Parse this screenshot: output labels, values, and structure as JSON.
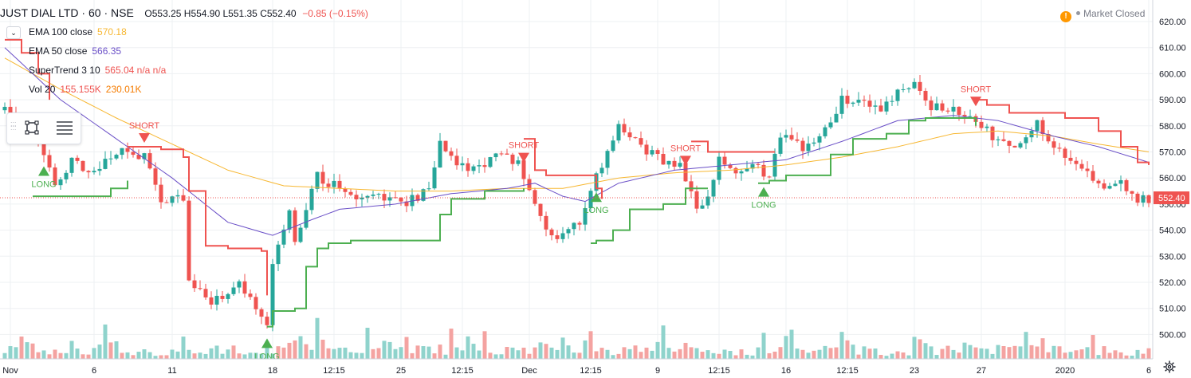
{
  "header": {
    "symbol": "JUST DIAL LTD · 60 · NSE",
    "ohlc": "O553.25 H554.90 L551.35 C552.40",
    "change": "−0.85 (−0.15%)",
    "market_status": "Market Closed"
  },
  "legend": [
    {
      "label": "EMA 100 close",
      "values": "570.18",
      "color": "#f7b731"
    },
    {
      "label": "EMA 50 close",
      "values": "566.35",
      "color": "#6a4fc7"
    },
    {
      "label": "SuperTrend 3 10",
      "values": "565.04 n/a n/a",
      "color": "#ef5350"
    },
    {
      "label": "Vol 20",
      "values": "155.155K",
      "values2": "230.01K",
      "color": "#ef5350",
      "color2": "#f57c00"
    }
  ],
  "colors": {
    "up": "#26a69a",
    "down": "#ef5350",
    "vol_up": "#8fd3cc",
    "vol_down": "#f4a3a1",
    "ema100": "#f7b731",
    "ema50": "#6a4fc7",
    "st_up": "#4caf50",
    "st_down": "#ef5350",
    "grid": "#eef0f3",
    "axis_text": "#131722",
    "last_price_bg": "#ef5350"
  },
  "chart_data": {
    "type": "candlestick",
    "title": "JUST DIAL LTD · 60 · NSE",
    "ylim": [
      495,
      625
    ],
    "y_ticks": [
      500,
      510,
      520,
      530,
      540,
      550,
      560,
      570,
      580,
      590,
      600,
      610,
      620
    ],
    "y_tick_labels": [
      "500.00",
      "510.00",
      "520.00",
      "530.00",
      "540.00",
      "550.00",
      "560.00",
      "570.00",
      "580.00",
      "590.00",
      "600.00",
      "610.00",
      "620.00"
    ],
    "x_ticks": [
      {
        "i": 1,
        "label": "Nov"
      },
      {
        "i": 16,
        "label": "6"
      },
      {
        "i": 30,
        "label": "11"
      },
      {
        "i": 48,
        "label": "18"
      },
      {
        "i": 59,
        "label": "12:15"
      },
      {
        "i": 71,
        "label": "25"
      },
      {
        "i": 82,
        "label": "12:15"
      },
      {
        "i": 94,
        "label": "Dec"
      },
      {
        "i": 105,
        "label": "12:15"
      },
      {
        "i": 117,
        "label": "9"
      },
      {
        "i": 128,
        "label": "12:15"
      },
      {
        "i": 140,
        "label": "16"
      },
      {
        "i": 151,
        "label": "12:15"
      },
      {
        "i": 163,
        "label": "23"
      },
      {
        "i": 175,
        "label": "27"
      },
      {
        "i": 190,
        "label": "2020"
      },
      {
        "i": 205,
        "label": "6"
      }
    ],
    "last_price": 552.4,
    "last_price_label": "552.40",
    "price_key": [
      [
        0,
        586
      ],
      [
        4,
        580
      ],
      [
        7,
        570
      ],
      [
        9,
        558
      ],
      [
        12,
        566
      ],
      [
        16,
        562
      ],
      [
        20,
        570
      ],
      [
        25,
        568
      ],
      [
        28,
        552
      ],
      [
        32,
        552
      ],
      [
        33,
        521
      ],
      [
        37,
        512
      ],
      [
        42,
        520
      ],
      [
        47,
        504
      ],
      [
        48,
        527
      ],
      [
        51,
        548
      ],
      [
        52,
        536
      ],
      [
        56,
        561
      ],
      [
        60,
        556
      ],
      [
        64,
        553
      ],
      [
        68,
        552
      ],
      [
        72,
        550
      ],
      [
        76,
        556
      ],
      [
        78,
        576
      ],
      [
        80,
        568
      ],
      [
        84,
        563
      ],
      [
        88,
        568
      ],
      [
        92,
        567
      ],
      [
        94,
        554
      ],
      [
        97,
        542
      ],
      [
        99,
        536
      ],
      [
        103,
        544
      ],
      [
        106,
        560
      ],
      [
        110,
        579
      ],
      [
        115,
        570
      ],
      [
        121,
        564
      ],
      [
        124,
        550
      ],
      [
        126,
        552
      ],
      [
        128,
        568
      ],
      [
        131,
        562
      ],
      [
        135,
        564
      ],
      [
        137,
        560
      ],
      [
        139,
        576
      ],
      [
        143,
        572
      ],
      [
        147,
        579
      ],
      [
        150,
        590
      ],
      [
        154,
        588
      ],
      [
        157,
        586
      ],
      [
        160,
        594
      ],
      [
        163,
        596
      ],
      [
        166,
        588
      ],
      [
        170,
        587
      ],
      [
        174,
        582
      ],
      [
        178,
        574
      ],
      [
        182,
        572
      ],
      [
        185,
        582
      ],
      [
        188,
        572
      ],
      [
        191,
        566
      ],
      [
        194,
        562
      ],
      [
        197,
        556
      ],
      [
        200,
        558
      ],
      [
        203,
        552
      ],
      [
        205,
        552
      ]
    ],
    "volume_key": [
      [
        0,
        10
      ],
      [
        5,
        9
      ],
      [
        10,
        6
      ],
      [
        15,
        8
      ],
      [
        20,
        9
      ],
      [
        25,
        5
      ],
      [
        30,
        7
      ],
      [
        33,
        7
      ],
      [
        40,
        9
      ],
      [
        45,
        8
      ],
      [
        50,
        11
      ],
      [
        54,
        12
      ],
      [
        60,
        9
      ],
      [
        70,
        6
      ],
      [
        80,
        8
      ],
      [
        85,
        8
      ],
      [
        92,
        6
      ],
      [
        95,
        8
      ],
      [
        100,
        12
      ],
      [
        105,
        8
      ],
      [
        110,
        7
      ],
      [
        118,
        9
      ],
      [
        125,
        6
      ],
      [
        130,
        5
      ],
      [
        140,
        7
      ],
      [
        150,
        12
      ],
      [
        155,
        6
      ],
      [
        162,
        6
      ],
      [
        170,
        7
      ],
      [
        178,
        7
      ],
      [
        186,
        9
      ],
      [
        192,
        5
      ],
      [
        198,
        8
      ],
      [
        205,
        4
      ]
    ],
    "ema100_key": [
      [
        0,
        606
      ],
      [
        10,
        594
      ],
      [
        20,
        583
      ],
      [
        30,
        573
      ],
      [
        40,
        563
      ],
      [
        50,
        557
      ],
      [
        60,
        556
      ],
      [
        70,
        555
      ],
      [
        80,
        555
      ],
      [
        90,
        556
      ],
      [
        100,
        556
      ],
      [
        110,
        560
      ],
      [
        120,
        562
      ],
      [
        130,
        563
      ],
      [
        140,
        565
      ],
      [
        150,
        568
      ],
      [
        160,
        572
      ],
      [
        170,
        577
      ],
      [
        178,
        578
      ],
      [
        188,
        576
      ],
      [
        196,
        573
      ],
      [
        205,
        570
      ]
    ],
    "ema50_key": [
      [
        0,
        610
      ],
      [
        10,
        590
      ],
      [
        20,
        575
      ],
      [
        30,
        560
      ],
      [
        40,
        543
      ],
      [
        48,
        538
      ],
      [
        55,
        544
      ],
      [
        60,
        548
      ],
      [
        70,
        550
      ],
      [
        80,
        554
      ],
      [
        90,
        556
      ],
      [
        95,
        558
      ],
      [
        100,
        553
      ],
      [
        104,
        551
      ],
      [
        110,
        558
      ],
      [
        120,
        563
      ],
      [
        130,
        565
      ],
      [
        140,
        567
      ],
      [
        150,
        574
      ],
      [
        160,
        582
      ],
      [
        170,
        584
      ],
      [
        178,
        582
      ],
      [
        188,
        576
      ],
      [
        196,
        572
      ],
      [
        205,
        566
      ]
    ],
    "supertrend": [
      {
        "trend": "short",
        "points": [
          [
            0,
            613
          ],
          [
            3,
            608
          ],
          [
            6,
            600
          ],
          [
            8,
            590
          ]
        ]
      },
      {
        "trend": "long",
        "points": [
          [
            5,
            553
          ],
          [
            18,
            553
          ],
          [
            19,
            556
          ],
          [
            22,
            556
          ],
          [
            22,
            559
          ]
        ]
      },
      {
        "trend": "short",
        "points": [
          [
            22,
            572
          ],
          [
            28,
            571
          ],
          [
            32,
            568
          ],
          [
            33,
            555
          ],
          [
            36,
            534
          ],
          [
            40,
            533
          ],
          [
            46,
            532
          ],
          [
            47,
            515
          ]
        ]
      },
      {
        "trend": "long",
        "points": [
          [
            47,
            503
          ],
          [
            48,
            509
          ],
          [
            52,
            510
          ],
          [
            54,
            526
          ],
          [
            56,
            533
          ],
          [
            58,
            535
          ],
          [
            62,
            536
          ],
          [
            68,
            536
          ],
          [
            75,
            536
          ],
          [
            78,
            546
          ],
          [
            80,
            552
          ],
          [
            86,
            555
          ],
          [
            93,
            556
          ]
        ]
      },
      {
        "trend": "short",
        "points": [
          [
            93,
            575
          ],
          [
            95,
            563
          ],
          [
            97,
            561
          ],
          [
            104,
            561
          ],
          [
            106,
            556
          ],
          [
            107,
            552
          ]
        ]
      },
      {
        "trend": "long",
        "points": [
          [
            105,
            535
          ],
          [
            106,
            536
          ],
          [
            109,
            540
          ],
          [
            112,
            548
          ],
          [
            118,
            550
          ],
          [
            122,
            556
          ],
          [
            126,
            556
          ]
        ]
      },
      {
        "trend": "short",
        "points": [
          [
            123,
            574
          ],
          [
            126,
            570
          ],
          [
            130,
            570
          ],
          [
            135,
            570
          ],
          [
            138,
            570
          ]
        ]
      },
      {
        "trend": "long",
        "points": [
          [
            135,
            558
          ],
          [
            137,
            559
          ],
          [
            140,
            561
          ],
          [
            146,
            561
          ],
          [
            148,
            569
          ],
          [
            152,
            575
          ],
          [
            158,
            577
          ],
          [
            162,
            582
          ],
          [
            165,
            583
          ],
          [
            173,
            583
          ],
          [
            174,
            580
          ]
        ]
      },
      {
        "trend": "short",
        "points": [
          [
            174,
            590
          ],
          [
            176,
            588
          ],
          [
            180,
            585
          ],
          [
            186,
            585
          ],
          [
            190,
            583
          ],
          [
            196,
            578
          ],
          [
            200,
            572
          ],
          [
            203,
            566
          ],
          [
            205,
            565
          ]
        ]
      }
    ],
    "signals": [
      {
        "i": 7,
        "type": "long",
        "label": "LONG"
      },
      {
        "i": 25,
        "type": "short",
        "label": "SHORT"
      },
      {
        "i": 47,
        "type": "long",
        "label": "LONG"
      },
      {
        "i": 93,
        "type": "short",
        "label": "SHORT"
      },
      {
        "i": 106,
        "type": "long",
        "label": "LONG"
      },
      {
        "i": 122,
        "type": "short",
        "label": "SHORT"
      },
      {
        "i": 136,
        "type": "long",
        "label": "LONG"
      },
      {
        "i": 174,
        "type": "short",
        "label": "SHORT"
      }
    ]
  }
}
